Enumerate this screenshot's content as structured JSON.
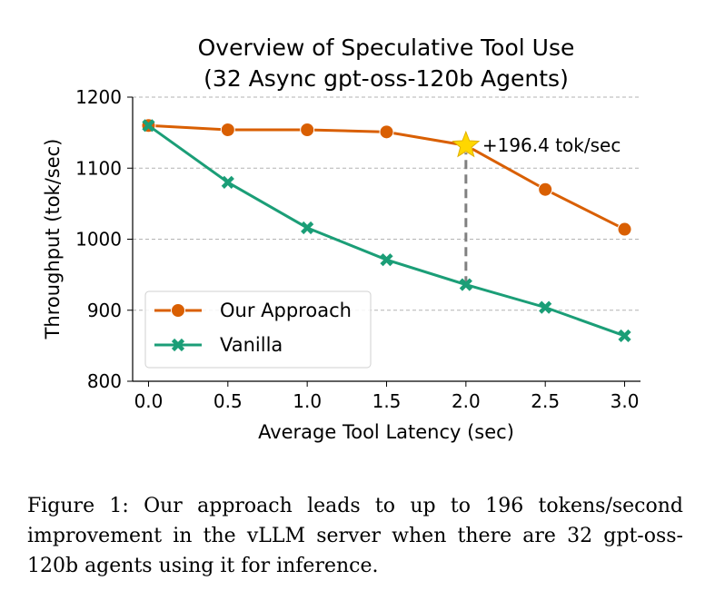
{
  "chart_data": {
    "type": "line",
    "title": "Overview of Speculative Tool Use",
    "subtitle": "(32 Async gpt-oss-120b Agents)",
    "xlabel": "Average Tool Latency (sec)",
    "ylabel": "Throughput (tok/sec)",
    "x": [
      0.0,
      0.5,
      1.0,
      1.5,
      2.0,
      2.5,
      3.0
    ],
    "x_tick_labels": [
      "0.0",
      "0.5",
      "1.0",
      "1.5",
      "2.0",
      "2.5",
      "3.0"
    ],
    "y_ticks": [
      800,
      900,
      1000,
      1100,
      1200
    ],
    "y_tick_labels": [
      "800",
      "900",
      "1000",
      "1100",
      "1200"
    ],
    "xlim": [
      -0.1,
      3.1
    ],
    "ylim": [
      800,
      1200
    ],
    "grid": "horizontal dashed",
    "legend_position": "lower-left",
    "series": [
      {
        "name": "Our Approach",
        "marker": "circle",
        "color": "#d95f02",
        "values": [
          1160,
          1154,
          1154,
          1151,
          1132,
          1070,
          1014
        ]
      },
      {
        "name": "Vanilla",
        "marker": "x",
        "color": "#1b9e77",
        "values": [
          1160,
          1080,
          1016,
          971,
          936,
          904,
          864
        ]
      }
    ],
    "annotation": {
      "text": "+196.4 tok/sec",
      "x": 2.0,
      "y_top": 1132,
      "y_bottom": 936,
      "marker": "star",
      "marker_color": "#ffd700"
    }
  },
  "caption": "Figure 1: Our approach leads to up to 196 tokens/second improvement in the vLLM server when there are 32 gpt-oss-120b agents using it for inference."
}
